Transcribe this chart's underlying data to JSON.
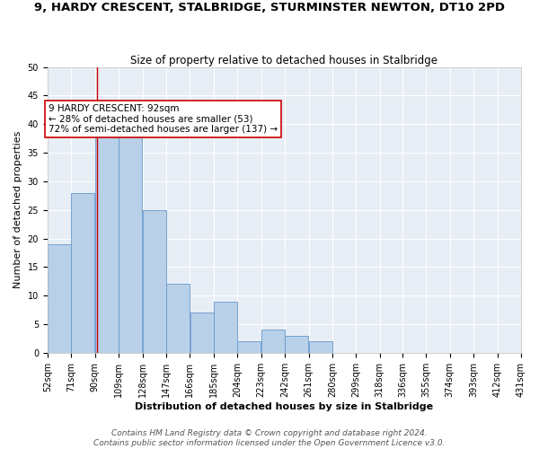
{
  "title": "9, HARDY CRESCENT, STALBRIDGE, STURMINSTER NEWTON, DT10 2PD",
  "subtitle": "Size of property relative to detached houses in Stalbridge",
  "xlabel": "Distribution of detached houses by size in Stalbridge",
  "ylabel": "Number of detached properties",
  "bin_edges": [
    52,
    71,
    90,
    109,
    128,
    147,
    166,
    185,
    204,
    223,
    242,
    261,
    280,
    299,
    318,
    336,
    355,
    374,
    393,
    412,
    431
  ],
  "bin_heights": [
    19,
    28,
    39,
    40,
    25,
    12,
    7,
    9,
    2,
    4,
    3,
    2,
    0,
    0,
    0,
    0,
    0,
    0,
    0,
    0
  ],
  "bar_color": "#b8d0e8",
  "bar_edge_color": "#6699cc",
  "background_color": "#e8eef5",
  "grid_color": "#ffffff",
  "property_line_x": 92,
  "property_line_color": "#cc0000",
  "annotation_text": "9 HARDY CRESCENT: 92sqm\n← 28% of detached houses are smaller (53)\n72% of semi-detached houses are larger (137) →",
  "annotation_box_facecolor": "#ffffff",
  "annotation_box_edgecolor": "#cc0000",
  "ylim": [
    0,
    50
  ],
  "yticks": [
    0,
    5,
    10,
    15,
    20,
    25,
    30,
    35,
    40,
    45,
    50
  ],
  "tick_labels": [
    "52sqm",
    "71sqm",
    "90sqm",
    "109sqm",
    "128sqm",
    "147sqm",
    "166sqm",
    "185sqm",
    "204sqm",
    "223sqm",
    "242sqm",
    "261sqm",
    "280sqm",
    "299sqm",
    "318sqm",
    "336sqm",
    "355sqm",
    "374sqm",
    "393sqm",
    "412sqm",
    "431sqm"
  ],
  "footer_line1": "Contains HM Land Registry data © Crown copyright and database right 2024.",
  "footer_line2": "Contains public sector information licensed under the Open Government Licence v3.0.",
  "title_fontsize": 9.5,
  "subtitle_fontsize": 8.5,
  "annotation_fontsize": 7.5,
  "axis_label_fontsize": 8,
  "tick_fontsize": 7,
  "footer_fontsize": 6.5
}
